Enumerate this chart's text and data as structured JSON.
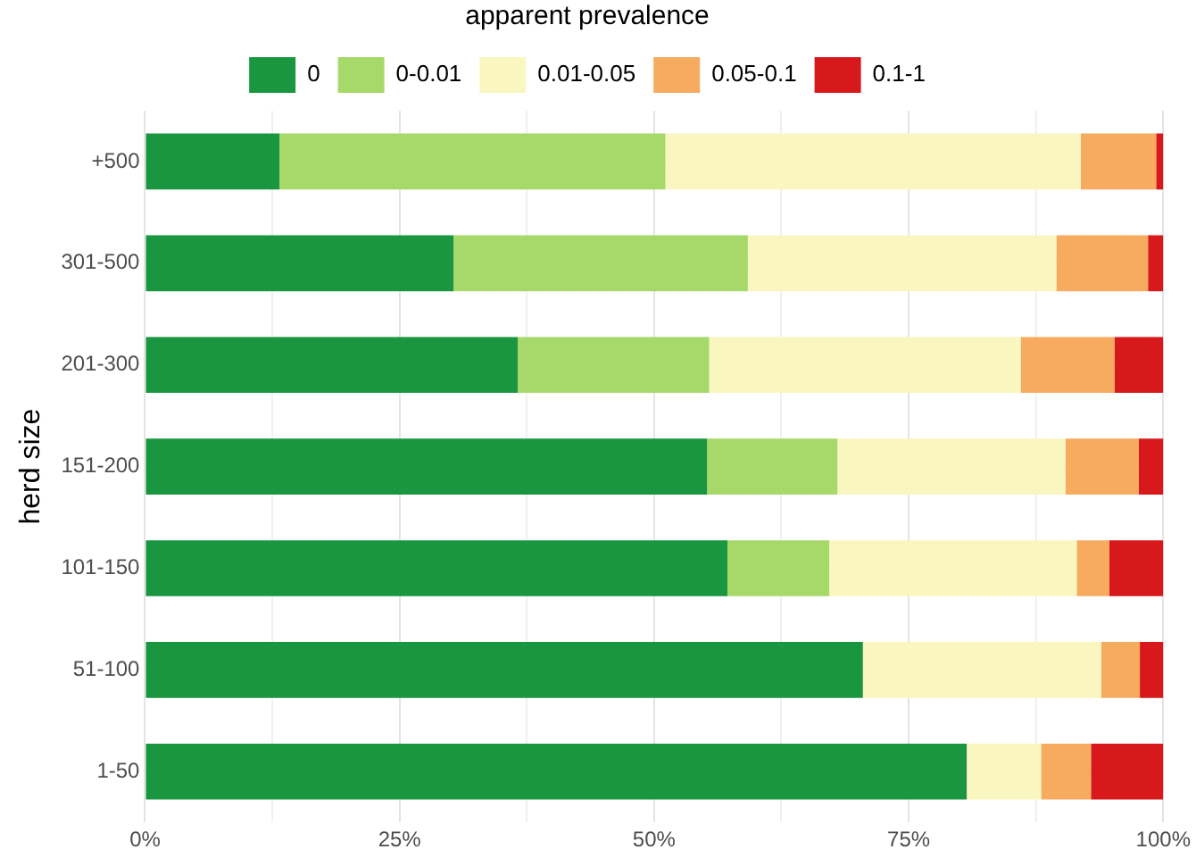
{
  "chart_data": {
    "type": "bar",
    "orientation": "horizontal",
    "stacked": true,
    "ylabel": "herd size",
    "legend_title": "apparent prevalence",
    "legend": "top",
    "categories": [
      "+500",
      "301-500",
      "201-300",
      "151-200",
      "101-150",
      "51-100",
      "1-50"
    ],
    "series": [
      {
        "name": "0",
        "color": "#1a9641",
        "values": [
          13.2,
          30.3,
          36.6,
          55.2,
          57.2,
          70.5,
          80.7
        ]
      },
      {
        "name": "0-0.01",
        "color": "#a6d96a",
        "values": [
          37.9,
          28.9,
          18.8,
          12.8,
          10.0,
          0,
          0
        ]
      },
      {
        "name": "0.01-0.05",
        "color": "#f9f6c0",
        "values": [
          40.8,
          30.3,
          30.6,
          22.4,
          24.3,
          23.4,
          7.3
        ]
      },
      {
        "name": "0.05-0.1",
        "color": "#f6ab5f",
        "values": [
          7.4,
          9.0,
          9.2,
          7.2,
          3.2,
          3.8,
          4.9
        ]
      },
      {
        "name": "0.1-1",
        "color": "#d7191c",
        "values": [
          0.7,
          1.5,
          4.8,
          2.4,
          5.3,
          2.3,
          7.1
        ]
      }
    ],
    "xlim": [
      0,
      100
    ],
    "xticks": [
      {
        "value": 0,
        "label": "0%"
      },
      {
        "value": 12.5,
        "label": null
      },
      {
        "value": 25,
        "label": "25%"
      },
      {
        "value": 37.5,
        "label": null
      },
      {
        "value": 50,
        "label": "50%"
      },
      {
        "value": 62.5,
        "label": null
      },
      {
        "value": 75,
        "label": "75%"
      },
      {
        "value": 87.5,
        "label": null
      },
      {
        "value": 100,
        "label": "100%"
      }
    ],
    "grid": true
  }
}
